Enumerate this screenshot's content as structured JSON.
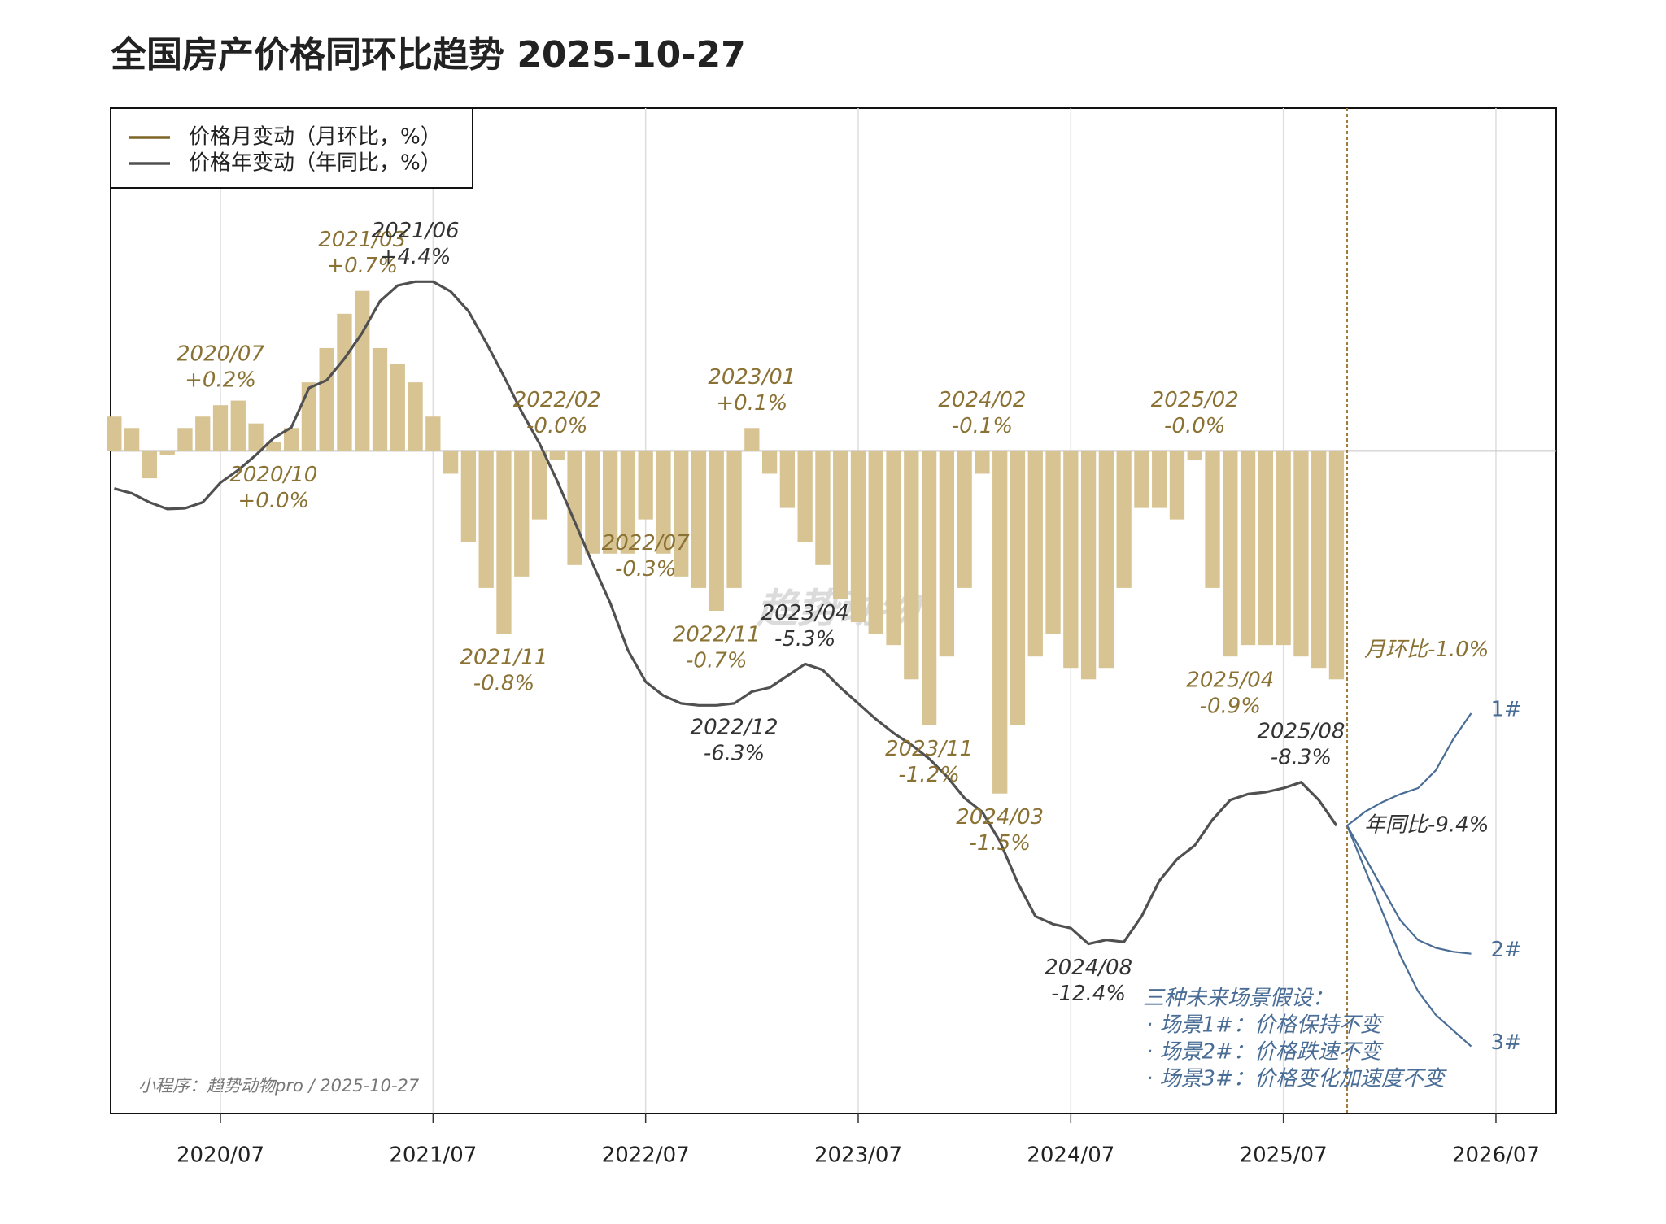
{
  "chart_data": {
    "type": "bar",
    "title": "全国房产价格同环比趋势 2025-10-27",
    "watermark": "趋势动物",
    "source": "小程序：趋势动物pro / 2025-10-27",
    "legend": "upper left",
    "grid": true,
    "x": [
      "2020/01",
      "2020/02",
      "2020/03",
      "2020/04",
      "2020/05",
      "2020/06",
      "2020/07",
      "2020/08",
      "2020/09",
      "2020/10",
      "2020/11",
      "2020/12",
      "2021/01",
      "2021/02",
      "2021/03",
      "2021/04",
      "2021/05",
      "2021/06",
      "2021/07",
      "2021/08",
      "2021/09",
      "2021/10",
      "2021/11",
      "2021/12",
      "2022/01",
      "2022/02",
      "2022/03",
      "2022/04",
      "2022/05",
      "2022/06",
      "2022/07",
      "2022/08",
      "2022/09",
      "2022/10",
      "2022/11",
      "2022/12",
      "2023/01",
      "2023/02",
      "2023/03",
      "2023/04",
      "2023/05",
      "2023/06",
      "2023/07",
      "2023/08",
      "2023/09",
      "2023/10",
      "2023/11",
      "2023/12",
      "2024/01",
      "2024/02",
      "2024/03",
      "2024/04",
      "2024/05",
      "2024/06",
      "2024/07",
      "2024/08",
      "2024/09",
      "2024/10",
      "2024/11",
      "2024/12",
      "2025/01",
      "2025/02",
      "2025/03",
      "2025/04",
      "2025/05",
      "2025/06",
      "2025/07",
      "2025/08",
      "2025/09",
      "2025/10"
    ],
    "xlim": [
      "2020/01",
      "2026/10"
    ],
    "xticks": [
      "2020/07",
      "2021/07",
      "2022/07",
      "2023/07",
      "2024/07",
      "2025/07",
      "2026/07"
    ],
    "ylim": [
      -2.9,
      1.5
    ],
    "y2lim": [
      -16.7,
      8.8
    ],
    "series": [
      {
        "name": "价格月变动（月环比，%）",
        "type": "bar",
        "color": "#d8c493",
        "legend_color": "#7d6527",
        "values": [
          0.15,
          0.1,
          -0.12,
          -0.02,
          0.1,
          0.15,
          0.2,
          0.22,
          0.12,
          0.04,
          0.1,
          0.3,
          0.45,
          0.6,
          0.7,
          0.45,
          0.38,
          0.3,
          0.15,
          -0.1,
          -0.4,
          -0.6,
          -0.8,
          -0.55,
          -0.3,
          -0.04,
          -0.5,
          -0.45,
          -0.45,
          -0.45,
          -0.3,
          -0.45,
          -0.55,
          -0.6,
          -0.7,
          -0.6,
          0.1,
          -0.1,
          -0.25,
          -0.4,
          -0.5,
          -0.65,
          -0.75,
          -0.8,
          -0.85,
          -1.0,
          -1.2,
          -0.9,
          -0.6,
          -0.1,
          -1.5,
          -1.2,
          -0.9,
          -0.8,
          -0.95,
          -1.0,
          -0.95,
          -0.6,
          -0.25,
          -0.25,
          -0.3,
          -0.04,
          -0.6,
          -0.9,
          -0.85,
          -0.85,
          -0.85,
          -0.9,
          -0.95,
          -1.0
        ],
        "value_labels": [
          null,
          null,
          null,
          null,
          null,
          null,
          "+0.2%",
          null,
          null,
          "+0.0%",
          null,
          null,
          null,
          null,
          "+0.7%",
          null,
          null,
          null,
          null,
          null,
          null,
          null,
          "-0.8%",
          null,
          null,
          "-0.0%",
          null,
          null,
          null,
          null,
          "-0.3%",
          null,
          null,
          null,
          "-0.7%",
          null,
          "+0.1%",
          null,
          null,
          null,
          null,
          null,
          null,
          null,
          null,
          null,
          "-1.2%",
          null,
          null,
          "-0.1%",
          "-1.5%",
          null,
          null,
          null,
          null,
          null,
          null,
          null,
          null,
          null,
          null,
          "-0.0%",
          null,
          "-0.9%",
          null,
          null,
          null,
          null,
          null,
          "月环比-1.0%"
        ]
      },
      {
        "name": "价格年变动（年同比，%）",
        "type": "line",
        "axis": "y2",
        "color": "#505050",
        "legend_color": "#505050",
        "values": [
          -0.85,
          -0.97,
          -1.2,
          -1.37,
          -1.35,
          -1.2,
          -0.7,
          -0.38,
          0.0,
          0.43,
          0.7,
          1.7,
          1.9,
          2.45,
          3.1,
          3.9,
          4.3,
          4.4,
          4.4,
          4.15,
          3.65,
          2.85,
          2.0,
          1.1,
          0.3,
          -0.65,
          -1.7,
          -2.75,
          -3.75,
          -4.95,
          -5.75,
          -6.1,
          -6.3,
          -6.35,
          -6.35,
          -6.3,
          -6.0,
          -5.9,
          -5.6,
          -5.3,
          -5.45,
          -5.9,
          -6.3,
          -6.7,
          -7.05,
          -7.35,
          -7.7,
          -8.15,
          -8.7,
          -9.05,
          -9.8,
          -10.85,
          -11.7,
          -11.9,
          -12.0,
          -12.4,
          -12.3,
          -12.35,
          -11.7,
          -10.8,
          -10.25,
          -9.9,
          -9.25,
          -8.75,
          -8.6,
          -8.55,
          -8.45,
          -8.3,
          -8.75,
          -9.4
        ],
        "value_labels": [
          null,
          null,
          null,
          null,
          null,
          null,
          null,
          null,
          null,
          null,
          null,
          null,
          null,
          null,
          null,
          null,
          null,
          "+4.4%",
          null,
          null,
          null,
          null,
          null,
          null,
          null,
          null,
          null,
          null,
          null,
          null,
          null,
          null,
          null,
          null,
          null,
          "-6.3%",
          null,
          null,
          null,
          "-5.3%",
          null,
          null,
          null,
          null,
          null,
          null,
          null,
          null,
          null,
          null,
          null,
          null,
          null,
          null,
          null,
          "-12.4%",
          null,
          null,
          null,
          null,
          null,
          null,
          null,
          null,
          null,
          null,
          null,
          "-8.3%",
          null,
          "年同比-9.4%"
        ]
      }
    ],
    "scenarios": {
      "x": [
        "2025/10",
        "2025/11",
        "2025/12",
        "2026/01",
        "2026/02",
        "2026/03",
        "2026/04",
        "2026/05"
      ],
      "axis": "y2",
      "note": [
        "三种未来场景假设：",
        "· 场景1#：价格保持不变",
        "· 场景2#：价格跌速不变",
        "· 场景3#：价格变化加速度不变"
      ],
      "series": [
        {
          "name": "1#",
          "color": "#4a6d96",
          "values": [
            -9.4,
            -9.05,
            -8.8,
            -8.6,
            -8.45,
            -8.0,
            -7.2,
            -6.55
          ]
        },
        {
          "name": "2#",
          "color": "#4a6d96",
          "values": [
            -9.4,
            -10.2,
            -11.0,
            -11.8,
            -12.3,
            -12.5,
            -12.6,
            -12.65
          ]
        },
        {
          "name": "3#",
          "color": "#4a6d96",
          "values": [
            -9.4,
            -10.5,
            -11.6,
            -12.7,
            -13.6,
            -14.2,
            -14.6,
            -15.0
          ]
        }
      ]
    }
  }
}
